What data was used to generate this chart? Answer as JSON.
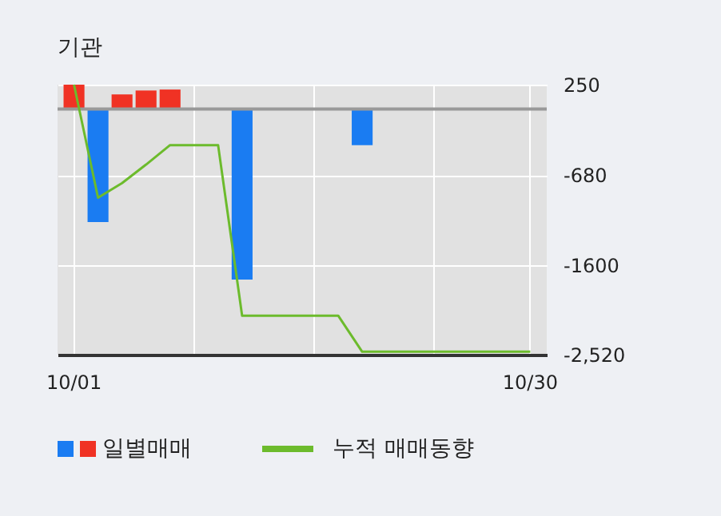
{
  "chart_data": {
    "type": "bar",
    "title": "기관",
    "categories": [
      "10/01",
      null,
      null,
      null,
      null,
      null,
      null,
      null,
      null,
      null,
      null,
      null,
      null,
      null,
      null,
      null,
      null,
      null,
      null,
      "10/30"
    ],
    "series": [
      {
        "name": "일별매매",
        "colors": [
          "#f03224",
          "#1a7cf2",
          "#f03224",
          "#f03224",
          "#f03224",
          "#1a7cf2",
          "#1a7cf2",
          "#1a7cf2",
          "#1a7cf2",
          "#1a7cf2",
          "#1a7cf2",
          "#1a7cf2",
          "#1a7cf2",
          "#1a7cf2",
          "#1a7cf2",
          "#1a7cf2",
          "#1a7cf2",
          "#1a7cf2",
          "#1a7cf2",
          "#1a7cf2"
        ],
        "values": [
          250,
          -1160,
          150,
          190,
          200,
          0,
          0,
          -1750,
          0,
          0,
          0,
          0,
          -370,
          0,
          0,
          0,
          0,
          0,
          0,
          0
        ]
      },
      {
        "name": "누적 매매동향",
        "type": "line",
        "color": "#6cbb2c",
        "values": [
          250,
          -910,
          -760,
          -570,
          -370,
          -370,
          -370,
          -2120,
          -2120,
          -2120,
          -2120,
          -2120,
          -2490,
          -2490,
          -2490,
          -2490,
          -2490,
          -2490,
          -2490,
          -2490
        ]
      }
    ],
    "ylim": [
      -2520,
      250
    ],
    "yticks": [
      250,
      -680,
      -1600,
      {
        "value": -2520,
        "label": "-2,520"
      }
    ],
    "ref_lines": [
      {
        "axis": "y",
        "value": 0,
        "color": "#999999"
      }
    ],
    "grid": true,
    "legend": "bottom"
  }
}
